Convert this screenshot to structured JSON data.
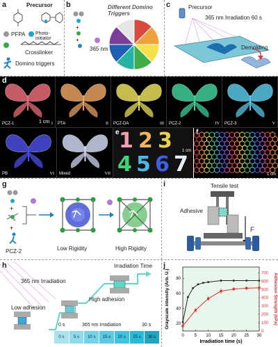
{
  "panel_a": {
    "label": "a",
    "title": "Precursor",
    "legend": [
      "PFPA",
      "Photo-initiator",
      "Crosslinker",
      "Domino triggers"
    ]
  },
  "panel_b": {
    "label": "b",
    "uv": "365 nm",
    "wheel_title": "Different Domino Triggers",
    "wheel_colors": [
      "#d94c3d",
      "#f0a23a",
      "#f5e14a",
      "#3fae49",
      "#27b3a4",
      "#1d5fb0",
      "#7b3f98",
      "#e6e6e6"
    ]
  },
  "panel_c": {
    "label": "c",
    "precursor": "Precursor",
    "irradiation": "365 nm Irradiation 60 s",
    "demolding": "Demolding"
  },
  "panel_d": {
    "label": "d",
    "scale": "1 cm",
    "items": [
      {
        "name": "PCZ-1",
        "roman": "I",
        "color": "#e86b76"
      },
      {
        "name": "PTA",
        "roman": "II",
        "color": "#e8a060"
      },
      {
        "name": "PCZ-DA",
        "roman": "III",
        "color": "#e7df5a"
      },
      {
        "name": "PCZ-2",
        "roman": "IV",
        "color": "#3fcf9a"
      },
      {
        "name": "PCZ-3",
        "roman": "V",
        "color": "#58c6e6"
      },
      {
        "name": "PB",
        "roman": "VI",
        "color": "#4a4ee0"
      },
      {
        "name": "Mixed",
        "roman": "VII",
        "color": "#cfd8f0"
      }
    ]
  },
  "panel_e": {
    "label": "e",
    "scale": "1 cm",
    "digits": [
      {
        "d": "1",
        "color": "#f0a0b0"
      },
      {
        "d": "2",
        "color": "#f2b45a"
      },
      {
        "d": "3",
        "color": "#e5d34a"
      },
      {
        "d": "4",
        "color": "#3fd27a"
      },
      {
        "d": "5",
        "color": "#4ab9e8"
      },
      {
        "d": "6",
        "color": "#4060e0"
      },
      {
        "d": "7",
        "color": "#e8eef8"
      }
    ]
  },
  "panel_f": {
    "label": "f",
    "scale": "1 cm"
  },
  "panel_g": {
    "label": "g",
    "sub": "PCZ-2",
    "low": "Low Rigidity",
    "high": "High Rigidity"
  },
  "panel_i": {
    "label": "i",
    "title": "Tensile test",
    "adhesive": "Adhesive",
    "force": "F"
  },
  "panel_h": {
    "label": "h",
    "uv": "365 nm Irradiation",
    "time": "Irradiation Time",
    "low": "Low adhesion",
    "high": "High adhesion",
    "t0": "0 s",
    "mid": "365 nm Irradiation",
    "t30": "30 s",
    "steps": [
      "0 s",
      "5 s",
      "10 s",
      "15 s",
      "20 s",
      "25 s",
      "30 s"
    ]
  },
  "chart_data": {
    "type": "line",
    "panel_label": "j",
    "xlabel": "Irradiation time (s)",
    "ylabel_left": "Grayscale intensity (Arb. U.)",
    "ylabel_right": "Adhesion Strength (kPa)",
    "x_ticks": [
      0,
      5,
      10,
      15,
      20,
      25,
      30
    ],
    "yleft_ticks": [
      20,
      40,
      60,
      80
    ],
    "yright_ticks": [
      0,
      100,
      200,
      300,
      400,
      500,
      600,
      700
    ],
    "xlim": [
      0,
      30
    ],
    "yleft_lim": [
      10,
      95
    ],
    "yright_lim": [
      0,
      770
    ],
    "series": [
      {
        "axis": "left",
        "color": "#222222",
        "x": [
          0,
          2,
          4,
          6,
          8,
          10,
          15,
          20,
          25,
          30
        ],
        "y": [
          22,
          55,
          67,
          72,
          74,
          75,
          77,
          77,
          77,
          77
        ]
      },
      {
        "axis": "right",
        "color": "#e03030",
        "x": [
          0,
          5,
          10,
          15,
          20,
          25,
          30
        ],
        "y": [
          60,
          250,
          390,
          480,
          505,
          515,
          520
        ],
        "err": [
          15,
          25,
          25,
          30,
          20,
          20,
          15
        ]
      }
    ]
  }
}
